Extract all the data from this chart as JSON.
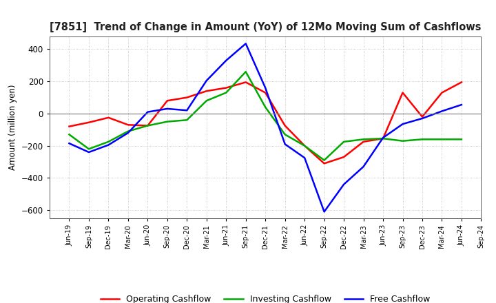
{
  "title": "[7851]  Trend of Change in Amount (YoY) of 12Mo Moving Sum of Cashflows",
  "ylabel": "Amount (million yen)",
  "x_labels": [
    "Jun-19",
    "Sep-19",
    "Dec-19",
    "Mar-20",
    "Jun-20",
    "Sep-20",
    "Dec-20",
    "Mar-21",
    "Jun-21",
    "Sep-21",
    "Dec-21",
    "Mar-22",
    "Jun-22",
    "Sep-22",
    "Dec-22",
    "Mar-23",
    "Jun-23",
    "Sep-23",
    "Dec-23",
    "Mar-24",
    "Jun-24",
    "Sep-24"
  ],
  "operating": [
    -80,
    -55,
    -25,
    -70,
    -75,
    80,
    100,
    140,
    160,
    195,
    130,
    -75,
    -200,
    -310,
    -270,
    -175,
    -155,
    130,
    -20,
    130,
    195,
    null
  ],
  "investing": [
    -130,
    -220,
    -175,
    -110,
    -75,
    -50,
    -40,
    80,
    130,
    260,
    40,
    -130,
    -200,
    -290,
    -175,
    -160,
    -155,
    -170,
    -160,
    -160,
    -160,
    null
  ],
  "free": [
    -185,
    -240,
    -195,
    -120,
    10,
    30,
    20,
    205,
    330,
    435,
    160,
    -190,
    -275,
    -610,
    -440,
    -330,
    -150,
    -65,
    -30,
    15,
    55,
    null
  ],
  "operating_color": "#ff0000",
  "investing_color": "#00aa00",
  "free_color": "#0000ff",
  "ylim": [
    -650,
    480
  ],
  "yticks": [
    -600,
    -400,
    -200,
    0,
    200,
    400
  ],
  "background_color": "#ffffff",
  "grid_color": "#bbbbbb",
  "legend_labels": [
    "Operating Cashflow",
    "Investing Cashflow",
    "Free Cashflow"
  ]
}
